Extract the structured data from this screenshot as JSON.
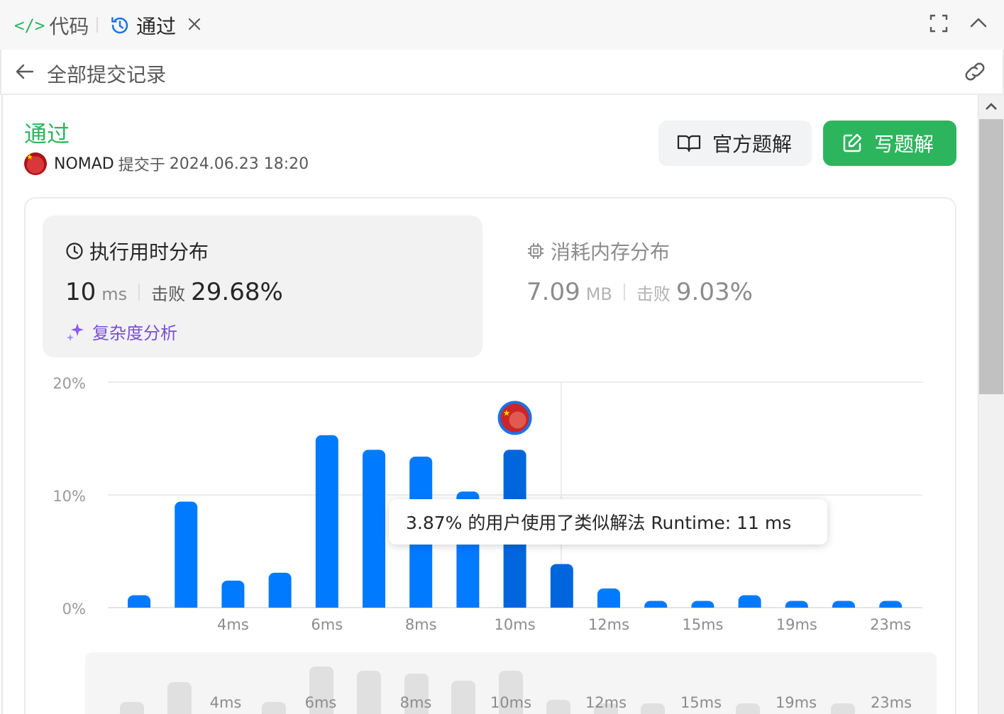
{
  "tabs": {
    "code_label": "代码",
    "code_icon": "code-icon",
    "result_label": "通过",
    "result_icon": "history-icon"
  },
  "header": {
    "title": "全部提交记录"
  },
  "submission": {
    "status": "通过",
    "user": "NOMAD",
    "submitted_label": "提交于",
    "time": "2024.06.23 18:20"
  },
  "actions": {
    "official_label": "官方题解",
    "write_label": "写题解"
  },
  "runtime": {
    "title": "执行用时分布",
    "value": "10",
    "unit": "ms",
    "beat_label": "击败",
    "beat_pct": "29.68%",
    "complexity_label": "复杂度分析"
  },
  "memory": {
    "title": "消耗内存分布",
    "value": "7.09",
    "unit": "MB",
    "beat_label": "击败",
    "beat_pct": "9.03%"
  },
  "tooltip": {
    "text": "3.87% 的用户使用了类似解法 Runtime: 11 ms"
  },
  "colors": {
    "accent_green": "#2db55d",
    "bar_blue": "#007aff",
    "bar_highlight": "#0066dd",
    "overview_bar": "#e0e0e0"
  },
  "chart_data": {
    "type": "bar",
    "ylim": [
      0,
      20
    ],
    "yticks": [
      "20%",
      "10%",
      "0%"
    ],
    "ytick_values": [
      20,
      10,
      0
    ],
    "values": [
      1.1,
      9.4,
      2.4,
      3.1,
      15.3,
      14.0,
      13.4,
      10.3,
      14.0,
      3.87,
      1.7,
      0.6,
      0.6,
      1.1,
      0.6,
      0.6,
      0.6
    ],
    "highlight_indices": [
      8,
      9
    ],
    "user_bar_index": 8,
    "xtick_labels": [
      "4ms",
      "6ms",
      "8ms",
      "10ms",
      "12ms",
      "15ms",
      "19ms",
      "23ms"
    ],
    "xtick_bar_indices": [
      2,
      4,
      6,
      8,
      10,
      12,
      14,
      16
    ],
    "overview_values": [
      0.8,
      3.6,
      0.8,
      5.8,
      5.2,
      4.8,
      3.8,
      5.2,
      1.1,
      0.6,
      0.6,
      0.6,
      0.6
    ]
  }
}
